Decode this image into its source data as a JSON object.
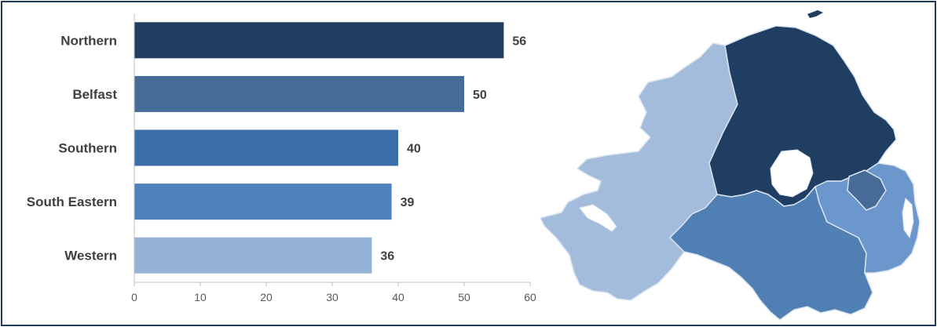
{
  "chart_data": {
    "type": "bar",
    "orientation": "horizontal",
    "categories": [
      "Northern",
      "Belfast",
      "Southern",
      "South Eastern",
      "Western"
    ],
    "values": [
      56,
      50,
      40,
      39,
      36
    ],
    "colors": [
      "#203e62",
      "#456b96",
      "#3a6ea8",
      "#4f81bd",
      "#95b3d7"
    ],
    "xlim": [
      0,
      60
    ],
    "xticks": [
      0,
      10,
      20,
      30,
      40,
      50,
      60
    ],
    "grid": false,
    "title": "",
    "xlabel": "",
    "ylabel": ""
  },
  "map": {
    "regions": [
      {
        "name": "Western",
        "color": "#a3bcdb"
      },
      {
        "name": "Northern",
        "color": "#203e62"
      },
      {
        "name": "Belfast",
        "color": "#456b96"
      },
      {
        "name": "Southern",
        "color": "#4f7fb3"
      },
      {
        "name": "South Eastern",
        "color": "#6b97cc"
      }
    ],
    "water_color": "#ffffff"
  }
}
